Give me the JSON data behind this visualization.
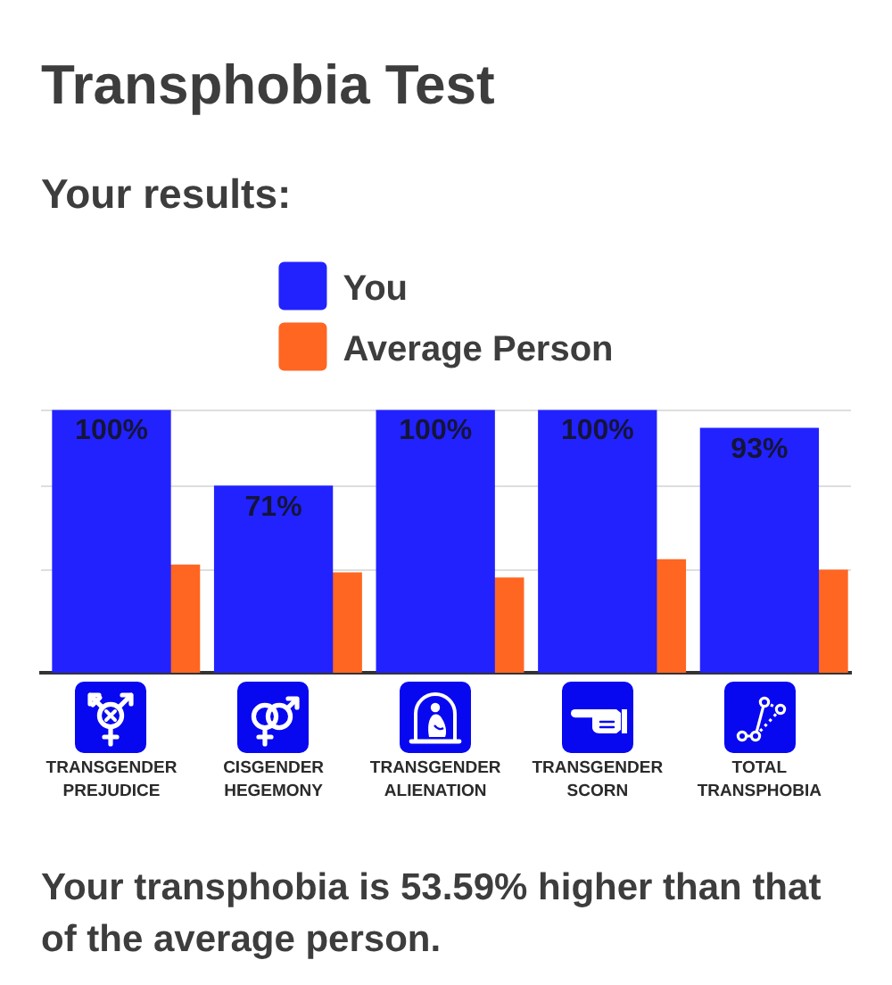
{
  "chart_data": {
    "type": "bar",
    "title": "Transphobia Test",
    "subtitle": "Your results:",
    "categories": [
      "TRANSGENDER PREJUDICE",
      "CISGENDER HEGEMONY",
      "TRANSGENDER ALIENATION",
      "TRANSGENDER SCORN",
      "TOTAL TRANSPHOBIA"
    ],
    "series": [
      {
        "name": "You",
        "color": "#2222ff",
        "values": [
          100,
          71,
          100,
          100,
          93
        ],
        "value_labels": [
          "100%",
          "71%",
          "100%",
          "100%",
          "93%"
        ]
      },
      {
        "name": "Average Person",
        "color": "#ff6622",
        "values": [
          41,
          38,
          36,
          43,
          39
        ]
      }
    ],
    "ylim": [
      0,
      100
    ],
    "yticks": [
      {
        "value": 39,
        "label": null
      },
      {
        "value": 71,
        "label": null
      },
      {
        "value": 100,
        "label": null
      }
    ],
    "grid": "y",
    "legend": "top",
    "tick_labels": "x",
    "annotations": [
      "Your transphobia is 53.59% higher than that of the average person."
    ]
  }
}
